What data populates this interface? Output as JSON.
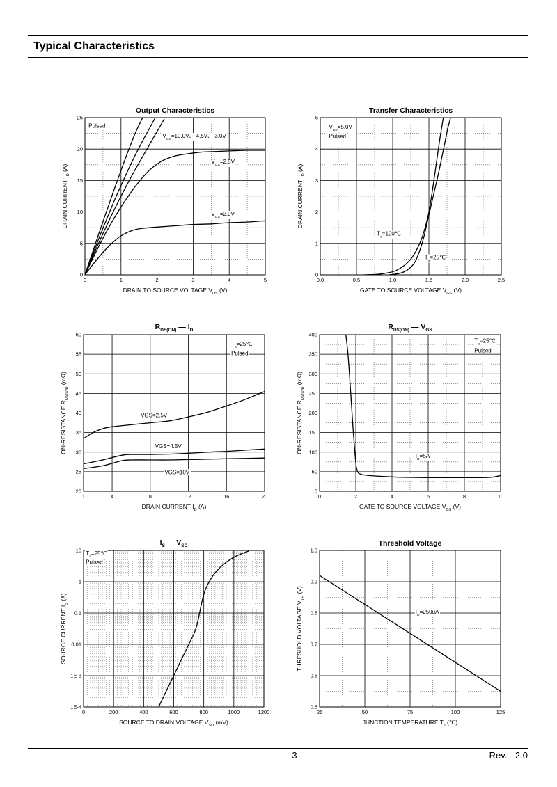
{
  "page": {
    "title": "Typical Characteristics",
    "page_number": "3",
    "revision": "Rev. - 2.0"
  },
  "chart_data": [
    {
      "id": "output",
      "type": "line",
      "title": "Output Characteristics",
      "xlabel": "DRAIN TO SOURCE VOLTAGE",
      "xlabel_symbol": "V",
      "xlabel_sub": "DS",
      "xlabel_unit": "(V)",
      "ylabel": "DRAIN CURRENT",
      "ylabel_symbol": "I",
      "ylabel_sub": "D",
      "ylabel_unit": "(A)",
      "xlim": [
        0,
        5
      ],
      "ylim": [
        0,
        25
      ],
      "xticks": [
        0,
        1,
        2,
        3,
        4,
        5
      ],
      "yticks": [
        0,
        5,
        10,
        15,
        20,
        25
      ],
      "annotations": [
        {
          "text": "Pulsed",
          "x": 0.1,
          "y": 23.4
        },
        {
          "text": "V",
          "sub": "GS",
          "rest": "=10.0V、 4.5V、 3.0V",
          "x": 2.15,
          "y": 21.8
        },
        {
          "text": "V",
          "sub": "GS",
          "rest": "=2.5V",
          "x": 3.5,
          "y": 17.7
        },
        {
          "text": "V",
          "sub": "GS",
          "rest": "=2.0V",
          "x": 3.5,
          "y": 9.4
        }
      ],
      "series": [
        {
          "name": "VGS=10.0V",
          "x": [
            0,
            0.2,
            0.4,
            0.6,
            0.8,
            1.0,
            1.2,
            1.4,
            1.6
          ],
          "y": [
            0,
            3.4,
            6.8,
            10.1,
            13.4,
            16.6,
            19.7,
            22.6,
            25
          ]
        },
        {
          "name": "VGS=4.5V",
          "x": [
            0,
            0.2,
            0.4,
            0.6,
            0.8,
            1.0,
            1.2,
            1.4,
            1.6,
            1.8,
            1.95
          ],
          "y": [
            0,
            3.0,
            6.0,
            8.8,
            11.6,
            14.2,
            16.7,
            19.1,
            21.3,
            23.4,
            25
          ]
        },
        {
          "name": "VGS=3.0V",
          "x": [
            0,
            0.2,
            0.4,
            0.6,
            0.8,
            1.0,
            1.2,
            1.4,
            1.6,
            1.8,
            2.0,
            2.2
          ],
          "y": [
            0,
            2.7,
            5.3,
            7.8,
            10.2,
            12.5,
            14.7,
            16.8,
            18.8,
            20.8,
            22.8,
            24.8
          ]
        },
        {
          "name": "VGS=2.5V",
          "x": [
            0,
            0.2,
            0.4,
            0.6,
            0.8,
            1.0,
            1.2,
            1.4,
            1.6,
            1.8,
            2.0,
            2.2,
            2.5,
            2.8,
            3.2,
            3.6,
            4.0,
            4.5,
            5.0
          ],
          "y": [
            0,
            2.4,
            4.7,
            6.9,
            8.9,
            10.8,
            12.5,
            14.1,
            15.5,
            16.7,
            17.6,
            18.3,
            18.9,
            19.2,
            19.5,
            19.6,
            19.7,
            19.8,
            19.8
          ]
        },
        {
          "name": "VGS=2.0V",
          "x": [
            0,
            0.2,
            0.4,
            0.6,
            0.8,
            1.0,
            1.2,
            1.4,
            1.6,
            2.0,
            2.5,
            3.0,
            3.5,
            4.0,
            4.5,
            5.0
          ],
          "y": [
            0,
            1.5,
            2.9,
            4.2,
            5.3,
            6.2,
            6.8,
            7.2,
            7.4,
            7.6,
            7.8,
            8.0,
            8.1,
            8.3,
            8.4,
            8.6
          ]
        }
      ]
    },
    {
      "id": "transfer",
      "type": "line",
      "title": "Transfer Characteristics",
      "xlabel": "GATE TO SOURCE VOLTAGE",
      "xlabel_symbol": "V",
      "xlabel_sub": "GS",
      "xlabel_unit": "(V)",
      "ylabel": "DRAIN CURRENT",
      "ylabel_symbol": "I",
      "ylabel_sub": "D",
      "ylabel_unit": "(A)",
      "xlim": [
        0,
        2.5
      ],
      "ylim": [
        0,
        5
      ],
      "xticks": [
        0.0,
        0.5,
        1.0,
        1.5,
        2.0,
        2.5
      ],
      "xtick_labels": [
        "0.0",
        "0.5",
        "1.0",
        "1.5",
        "2.0",
        "2.5"
      ],
      "yticks": [
        0,
        1,
        2,
        3,
        4,
        5
      ],
      "annotations": [
        {
          "text": "V",
          "sub": "DS",
          "rest": "=5.0V",
          "x": 0.12,
          "y": 4.65
        },
        {
          "text": "Pulsed",
          "x": 0.12,
          "y": 4.35
        },
        {
          "text": "T",
          "sub": "a",
          "rest": "=100℃",
          "x": 0.78,
          "y": 1.25
        },
        {
          "text": "T",
          "sub": "a",
          "rest": "=25℃",
          "x": 1.44,
          "y": 0.5
        }
      ],
      "series": [
        {
          "name": "Ta=100℃",
          "x": [
            0.6,
            0.8,
            0.95,
            1.05,
            1.15,
            1.25,
            1.32,
            1.4,
            1.46,
            1.5,
            1.55,
            1.6,
            1.65,
            1.7
          ],
          "y": [
            0,
            0.02,
            0.07,
            0.14,
            0.28,
            0.5,
            0.75,
            1.15,
            1.6,
            2.0,
            2.7,
            3.5,
            4.3,
            5.0
          ]
        },
        {
          "name": "Ta=25℃",
          "x": [
            0.95,
            1.1,
            1.2,
            1.3,
            1.37,
            1.43,
            1.48,
            1.53,
            1.58,
            1.63,
            1.68,
            1.72,
            1.76,
            1.8
          ],
          "y": [
            0,
            0.05,
            0.15,
            0.38,
            0.75,
            1.2,
            1.7,
            2.2,
            2.7,
            3.2,
            3.75,
            4.2,
            4.65,
            5.0
          ]
        }
      ]
    },
    {
      "id": "rds-id",
      "type": "line",
      "title": "R",
      "title_sub": "DS(ON)",
      "title_dash": "—",
      "title_rhs": "I",
      "title_rhs_sub": "D",
      "xlabel": "DRAIN CURRENT",
      "xlabel_symbol": "I",
      "xlabel_sub": "D",
      "xlabel_unit": "(A)",
      "ylabel": "ON-RESISTANCE",
      "ylabel_symbol": "R",
      "ylabel_sub": "DS(ON)",
      "ylabel_unit": "(mΩ)",
      "xlim": [
        1,
        20
      ],
      "ylim": [
        20,
        60
      ],
      "xticks": [
        1,
        4,
        8,
        12,
        16,
        20
      ],
      "yticks": [
        20,
        25,
        30,
        35,
        40,
        45,
        50,
        55,
        60
      ],
      "annotations": [
        {
          "text": "T",
          "sub": "a",
          "rest": "=25℃",
          "x": 16.5,
          "y": 57.2
        },
        {
          "text": "Pulsed",
          "x": 16.5,
          "y": 54.8
        },
        {
          "text": "VGS=2.5V",
          "x": 7.0,
          "y": 38.9
        },
        {
          "text": "VGS=4.5V",
          "x": 8.5,
          "y": 31.0
        },
        {
          "text": "VGS=10V",
          "x": 9.5,
          "y": 24.4
        }
      ],
      "series": [
        {
          "name": "VGS=2.5V",
          "x": [
            1,
            2,
            3,
            4,
            6,
            8,
            10,
            12,
            14,
            16,
            18,
            20
          ],
          "y": [
            33.5,
            35.0,
            36.0,
            36.5,
            37.0,
            37.5,
            38.0,
            39.0,
            40.2,
            41.8,
            43.5,
            45.5
          ]
        },
        {
          "name": "VGS=4.5V",
          "x": [
            1,
            3,
            5,
            6,
            8,
            10,
            12,
            14,
            16,
            18,
            20
          ],
          "y": [
            27.0,
            28.0,
            29.2,
            29.4,
            29.4,
            29.5,
            29.7,
            30.0,
            30.2,
            30.5,
            30.8
          ]
        },
        {
          "name": "VGS=10V",
          "x": [
            1,
            3,
            5,
            6,
            8,
            10,
            12,
            14,
            16,
            18,
            20
          ],
          "y": [
            25.8,
            26.5,
            27.8,
            28.0,
            28.0,
            28.0,
            28.1,
            28.2,
            28.3,
            28.4,
            28.5
          ]
        }
      ]
    },
    {
      "id": "rds-vgs",
      "type": "line",
      "title": "R",
      "title_sub": "DS(ON)",
      "title_dash": "—",
      "title_rhs": "V",
      "title_rhs_sub": "GS",
      "xlabel": "GATE TO SOURCE VOLTAGE",
      "xlabel_symbol": "V",
      "xlabel_sub": "GS",
      "xlabel_unit": "(V)",
      "ylabel": "ON-RESISTANCE",
      "ylabel_symbol": "R",
      "ylabel_sub": "DS(ON)",
      "ylabel_unit": "(mΩ)",
      "xlim": [
        0,
        10
      ],
      "ylim": [
        0,
        400
      ],
      "xticks": [
        0,
        2,
        4,
        6,
        8,
        10
      ],
      "yticks": [
        0,
        50,
        100,
        150,
        200,
        250,
        300,
        350,
        400
      ],
      "annotations": [
        {
          "text": "T",
          "sub": "a",
          "rest": "=25℃",
          "x": 8.55,
          "y": 380
        },
        {
          "text": "Pulsed",
          "x": 8.55,
          "y": 355
        },
        {
          "text": "I",
          "sub": "D",
          "rest": "=5A",
          "x": 5.3,
          "y": 85
        }
      ],
      "series": [
        {
          "name": "ID=5A",
          "x": [
            1.45,
            1.55,
            1.65,
            1.75,
            1.85,
            1.95,
            2.02,
            2.1,
            2.2,
            2.4,
            2.8,
            3.5,
            4.5,
            6,
            7,
            8,
            9,
            9.5,
            10
          ],
          "y": [
            400,
            360,
            300,
            230,
            160,
            100,
            65,
            50,
            45,
            42,
            40,
            38,
            36,
            35,
            35,
            35,
            35,
            36,
            40
          ]
        }
      ]
    },
    {
      "id": "is-vsd",
      "type": "line",
      "title": "I",
      "title_sub": "S",
      "title_dash": "—",
      "title_rhs": "V",
      "title_rhs_sub": "SD",
      "xlabel": "SOURCE TO DRAIN VOLTAGE",
      "xlabel_symbol": "V",
      "xlabel_sub": "SD",
      "xlabel_unit": "(mV)",
      "ylabel": "SOURCE CURRENT",
      "ylabel_symbol": "I",
      "ylabel_sub": "S",
      "ylabel_unit": "(A)",
      "yscale": "log",
      "xlim": [
        0,
        1200
      ],
      "ylim": [
        0.0001,
        10
      ],
      "xticks": [
        0,
        200,
        400,
        600,
        800,
        1000,
        1200
      ],
      "yticks": [
        0.0001,
        0.001,
        0.01,
        0.1,
        1,
        10
      ],
      "ytick_labels": [
        "1E-4",
        "1E-3",
        "0.01",
        "0.1",
        "1",
        "10"
      ],
      "annotations": [
        {
          "text": "T",
          "sub": "a",
          "rest": "=25℃",
          "x": 15,
          "y": 7.0
        },
        {
          "text": "Pulsed",
          "x": 15,
          "y": 3.7
        }
      ],
      "series": [
        {
          "name": "Ta=25℃",
          "x": [
            500,
            550,
            600,
            650,
            700,
            750,
            800,
            850,
            900,
            950,
            1000,
            1050,
            1100
          ],
          "y": [
            0.0001,
            0.00032,
            0.001,
            0.0032,
            0.01,
            0.035,
            0.4,
            1.3,
            2.6,
            4.2,
            6.0,
            7.8,
            9.6
          ]
        }
      ]
    },
    {
      "id": "threshold",
      "type": "line",
      "title": "Threshold Voltage",
      "xlabel": "JUNCTION TEMPERATURE",
      "xlabel_symbol": "T",
      "xlabel_sub": "J",
      "xlabel_unit": "(℃)",
      "ylabel": "THRESHOLD VOLTAGE",
      "ylabel_symbol": "V",
      "ylabel_sub": "TH",
      "ylabel_unit": "(V)",
      "xlim": [
        25,
        125
      ],
      "ylim": [
        0.5,
        1.0
      ],
      "xticks": [
        25,
        50,
        75,
        100,
        125
      ],
      "yticks": [
        0.5,
        0.6,
        0.7,
        0.8,
        0.9,
        1.0
      ],
      "ytick_labels": [
        "0.5",
        "0.6",
        "0.7",
        "0.8",
        "0.9",
        "1.0"
      ],
      "annotations": [
        {
          "text": "I",
          "sub": "D",
          "rest": "=250uA",
          "x": 78,
          "y": 0.798
        }
      ],
      "series": [
        {
          "name": "ID=250uA",
          "x": [
            25,
            125
          ],
          "y": [
            0.92,
            0.55
          ]
        }
      ]
    }
  ]
}
